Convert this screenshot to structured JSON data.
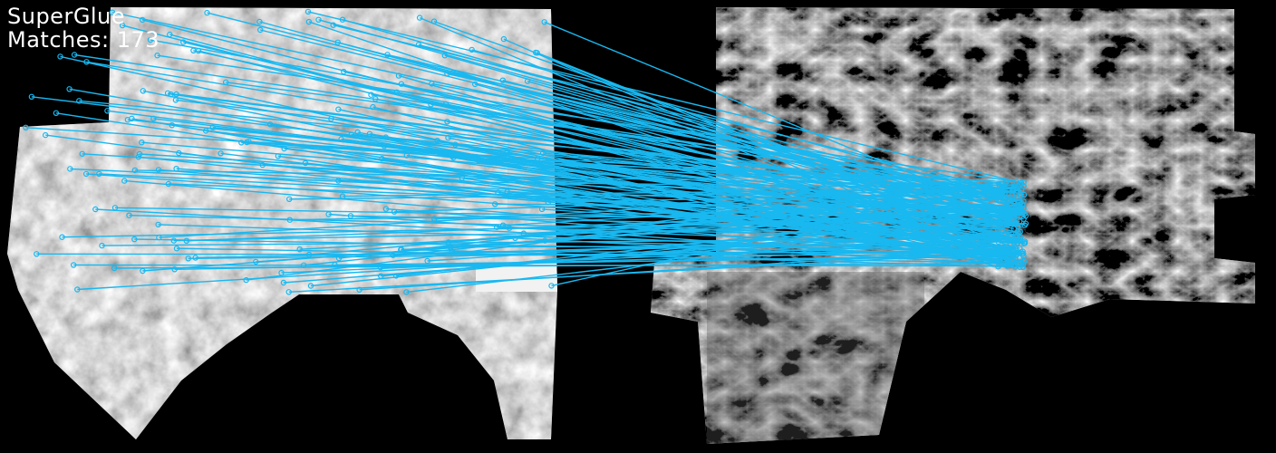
{
  "overlay": {
    "method_label": "SuperGlue",
    "matches_prefix": "Matches:",
    "matches_count": "173"
  },
  "colors": {
    "match_line": "#19b8f0",
    "background": "#000000"
  },
  "images": {
    "left": "grayscale aerial orthophoto",
    "right": "grayscale digital elevation model"
  }
}
